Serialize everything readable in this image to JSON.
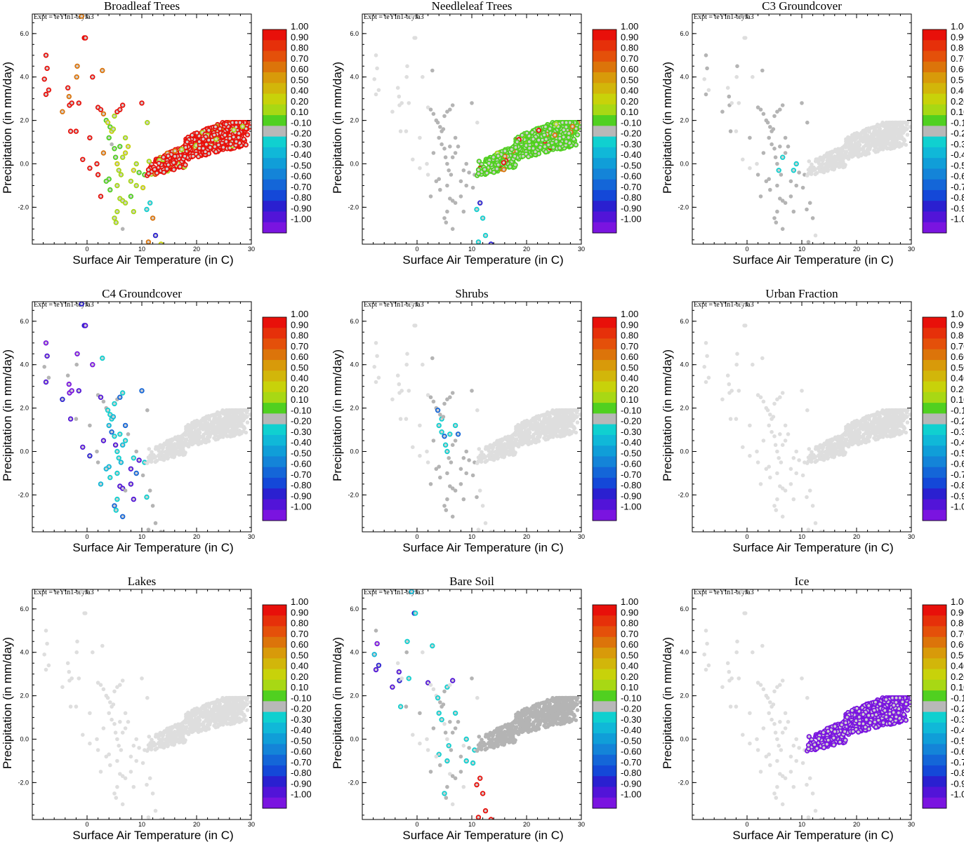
{
  "colorbar": {
    "labels": [
      "1.00",
      "0.90",
      "0.80",
      "0.70",
      "0.60",
      "0.50",
      "0.40",
      "0.20",
      "0.10",
      "-0.10",
      "-0.20",
      "-0.30",
      "-0.40",
      "-0.50",
      "-0.60",
      "-0.70",
      "-0.80",
      "-0.90",
      "-1.00"
    ],
    "colors": [
      "#e8100a",
      "#e6300a",
      "#e4500a",
      "#dc740a",
      "#d89a0a",
      "#d2b60a",
      "#c8d20a",
      "#a8d814",
      "#50d020",
      "#b8b8b8",
      "#10d0d0",
      "#10b8d8",
      "#109ed8",
      "#1484d8",
      "#1466d8",
      "#1448d8",
      "#2a20d0",
      "#5214d8",
      "#7a14e0"
    ]
  },
  "colors": {
    "light_gray": "#dedede",
    "mid_gray": "#b4b4b4",
    "dark_gray": "#a0a0a0"
  },
  "chart_data": [
    {
      "type": "scatter",
      "title": "Broadleaf Trees",
      "expt": "Expt = teYIn1-teyfa3",
      "xlabel": "Surface Air Temperature (in C)",
      "ylabel": "Precipitation (in mm/day)",
      "xlim": [
        -10,
        30
      ],
      "ylim": [
        -3.7,
        6.9
      ],
      "xticks": [
        "0",
        "10",
        "20",
        "30"
      ],
      "yticks": [
        "-2.0",
        "0.0",
        "2.0",
        "4.0",
        "6.0"
      ],
      "scheme": "broadleaf"
    },
    {
      "type": "scatter",
      "title": "Needleleaf Trees",
      "expt": "Expt = teYIn1-teyfa3",
      "xlabel": "Surface Air Temperature (in C)",
      "ylabel": "Precipitation (in mm/day)",
      "xlim": [
        -10,
        30
      ],
      "ylim": [
        -3.7,
        6.9
      ],
      "xticks": [
        "0",
        "10",
        "20",
        "30"
      ],
      "yticks": [
        "-2.0",
        "0.0",
        "2.0",
        "4.0",
        "6.0"
      ],
      "scheme": "needleleaf"
    },
    {
      "type": "scatter",
      "title": "C3 Groundcover",
      "expt": "Expt = teYIn1-teyfa3",
      "xlabel": "Surface Air Temperature (in C)",
      "ylabel": "Precipitation (in mm/day)",
      "xlim": [
        -10,
        30
      ],
      "ylim": [
        -3.7,
        6.9
      ],
      "xticks": [
        "0",
        "10",
        "20",
        "30"
      ],
      "yticks": [
        "-2.0",
        "0.0",
        "2.0",
        "4.0",
        "6.0"
      ],
      "scheme": "c3"
    },
    {
      "type": "scatter",
      "title": "C4 Groundcover",
      "expt": "Expt = teYIn1-teyfa3",
      "xlabel": "Surface Air Temperature (in C)",
      "ylabel": "Precipitation (in mm/day)",
      "xlim": [
        -10,
        30
      ],
      "ylim": [
        -3.7,
        6.9
      ],
      "xticks": [
        "0",
        "10",
        "20",
        "30"
      ],
      "yticks": [
        "-2.0",
        "0.0",
        "2.0",
        "4.0",
        "6.0"
      ],
      "scheme": "c4"
    },
    {
      "type": "scatter",
      "title": "Shrubs",
      "expt": "Expt = teYIn1-teyfa3",
      "xlabel": "Surface Air Temperature (in C)",
      "ylabel": "Precipitation (in mm/day)",
      "xlim": [
        -10,
        30
      ],
      "ylim": [
        -3.7,
        6.9
      ],
      "xticks": [
        "0",
        "10",
        "20",
        "30"
      ],
      "yticks": [
        "-2.0",
        "0.0",
        "2.0",
        "4.0",
        "6.0"
      ],
      "scheme": "shrubs"
    },
    {
      "type": "scatter",
      "title": "Urban Fraction",
      "expt": "Expt = teYIn1-teyfa3",
      "xlabel": "Surface Air Temperature (in C)",
      "ylabel": "Precipitation (in mm/day)",
      "xlim": [
        -10,
        30
      ],
      "ylim": [
        -3.7,
        6.9
      ],
      "xticks": [
        "0",
        "10",
        "20",
        "30"
      ],
      "yticks": [
        "-2.0",
        "0.0",
        "2.0",
        "4.0",
        "6.0"
      ],
      "scheme": "urban"
    },
    {
      "type": "scatter",
      "title": "Lakes",
      "expt": "Expt = teYIn1-teyfa3",
      "xlabel": "Surface Air Temperature (in C)",
      "ylabel": "Precipitation (in mm/day)",
      "xlim": [
        -10,
        30
      ],
      "ylim": [
        -3.7,
        6.9
      ],
      "xticks": [
        "0",
        "10",
        "20",
        "30"
      ],
      "yticks": [
        "-2.0",
        "0.0",
        "2.0",
        "4.0",
        "6.0"
      ],
      "scheme": "lakes"
    },
    {
      "type": "scatter",
      "title": "Bare Soil",
      "expt": "Expt = teYIn1-teyfa3",
      "xlabel": "Surface Air Temperature (in C)",
      "ylabel": "Precipitation (in mm/day)",
      "xlim": [
        -10,
        30
      ],
      "ylim": [
        -3.7,
        6.9
      ],
      "xticks": [
        "0",
        "10",
        "20",
        "30"
      ],
      "yticks": [
        "-2.0",
        "0.0",
        "2.0",
        "4.0",
        "6.0"
      ],
      "scheme": "baresoil"
    },
    {
      "type": "scatter",
      "title": "Ice",
      "expt": "Expt = teYIn1-teyfa3",
      "xlabel": "Surface Air Temperature (in C)",
      "ylabel": "Precipitation (in mm/day)",
      "xlim": [
        -10,
        30
      ],
      "ylim": [
        -3.7,
        6.9
      ],
      "xticks": [
        "0",
        "10",
        "20",
        "30"
      ],
      "yticks": [
        "-2.0",
        "0.0",
        "2.0",
        "4.0",
        "6.0"
      ],
      "scheme": "ice"
    }
  ]
}
